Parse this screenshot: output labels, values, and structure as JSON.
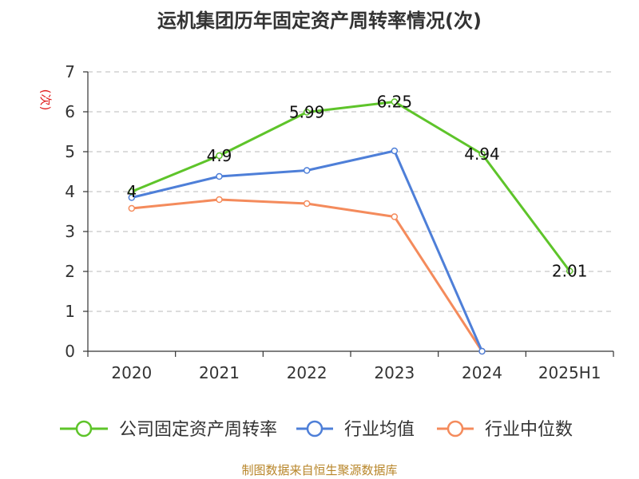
{
  "chart_data": {
    "type": "line",
    "title": "运机集团历年固定资产周转率情况(次)",
    "ylabel": "(次)",
    "xlabel": "",
    "categories": [
      "2020",
      "2021",
      "2022",
      "2023",
      "2024",
      "2025H1"
    ],
    "ylim": [
      0,
      7
    ],
    "yticks": [
      "0",
      "1",
      "2",
      "3",
      "4",
      "5",
      "6",
      "7"
    ],
    "grid": true,
    "legend_position": "bottom",
    "series": [
      {
        "name": "公司固定资产周转率",
        "color": "#5ec42a",
        "values": [
          4,
          4.9,
          5.99,
          6.25,
          4.94,
          2.01
        ],
        "labels": [
          "4",
          "4.9",
          "5.99",
          "6.25",
          "4.94",
          "2.01"
        ]
      },
      {
        "name": "行业均值",
        "color": "#4e7fd8",
        "values": [
          3.85,
          4.38,
          4.53,
          5.02,
          0,
          null
        ],
        "labels": []
      },
      {
        "name": "行业中位数",
        "color": "#f48b5c",
        "values": [
          3.58,
          3.8,
          3.7,
          3.37,
          0,
          null
        ],
        "labels": []
      }
    ]
  },
  "footer": "制图数据来自恒生聚源数据库"
}
